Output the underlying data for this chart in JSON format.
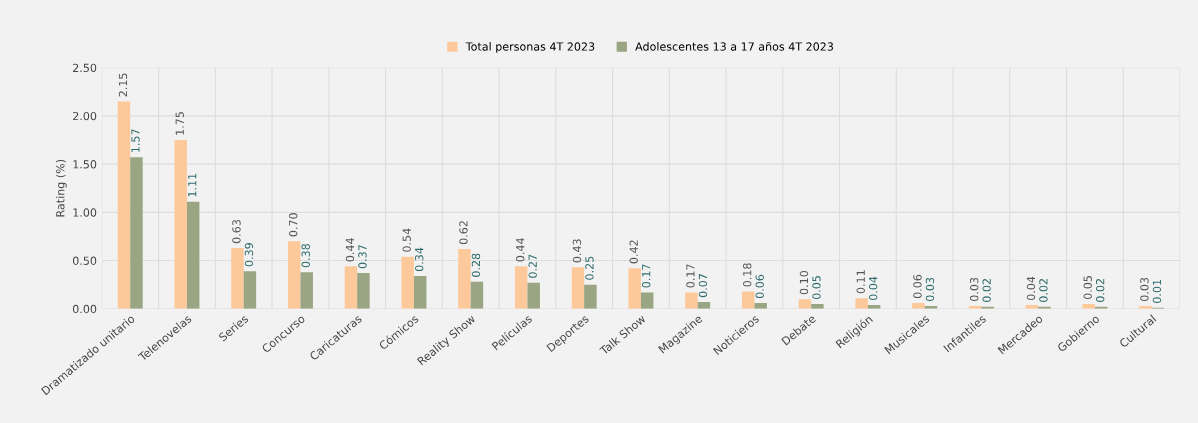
{
  "chart_data": {
    "type": "bar",
    "ylabel": "Rating (%)",
    "categories": [
      "Dramatizado unitario",
      "Telenovelas",
      "Series",
      "Concurso",
      "Caricaturas",
      "Cómicos",
      "Reality Show",
      "Películas",
      "Deportes",
      "Talk Show",
      "Magazine",
      "Noticieros",
      "Debate",
      "Religión",
      "Musicales",
      "Infantiles",
      "Mercadeo",
      "Gobierno",
      "Cultural"
    ],
    "series": [
      {
        "name": "Total personas 4T 2023",
        "color": "#fdc99a",
        "values": [
          2.15,
          1.75,
          0.63,
          0.7,
          0.44,
          0.54,
          0.62,
          0.44,
          0.43,
          0.42,
          0.17,
          0.18,
          0.1,
          0.11,
          0.06,
          0.03,
          0.04,
          0.05,
          0.03
        ],
        "value_labels": [
          "2.15",
          "1.75",
          "0.63",
          "0.70",
          "0.44",
          "0.54",
          "0.62",
          "0.44",
          "0.43",
          "0.42",
          "0.17",
          "0.18",
          "0.10",
          "0.11",
          "0.06",
          "0.03",
          "0.04",
          "0.05",
          "0.03"
        ]
      },
      {
        "name": "Adolescentes 13 a 17 años 4T 2023",
        "color": "#9aa583",
        "values": [
          1.57,
          1.11,
          0.39,
          0.38,
          0.37,
          0.34,
          0.28,
          0.27,
          0.25,
          0.17,
          0.07,
          0.06,
          0.05,
          0.04,
          0.03,
          0.02,
          0.02,
          0.02,
          0.01
        ],
        "value_labels": [
          "1.57",
          "1.11",
          "0.39",
          "0.38",
          "0.37",
          "0.34",
          "0.28",
          "0.27",
          "0.25",
          "0.17",
          "0.07",
          "0.06",
          "0.05",
          "0.04",
          "0.03",
          "0.02",
          "0.02",
          "0.02",
          "0.01"
        ]
      }
    ],
    "ylim": [
      0,
      2.5
    ],
    "yticks": [
      {
        "value": 0,
        "label": "0.00"
      },
      {
        "value": 0.5,
        "label": "0.50"
      },
      {
        "value": 1,
        "label": "1.00"
      },
      {
        "value": 1.5,
        "label": "1.50"
      },
      {
        "value": 2,
        "label": "2.00"
      },
      {
        "value": 2.5,
        "label": "2.50"
      }
    ],
    "grid": true,
    "legend": "top"
  }
}
